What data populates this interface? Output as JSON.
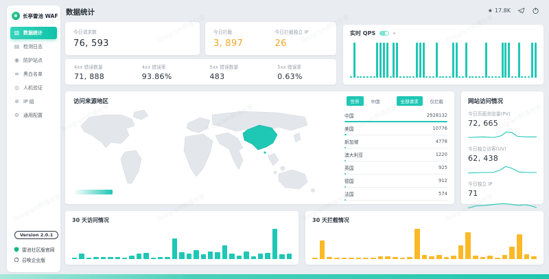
{
  "app": {
    "name": "长亭雷池 WAF",
    "version": "Version 2.0.1"
  },
  "header": {
    "title": "数据统计",
    "stars": "17.8K"
  },
  "sidebar": {
    "items": [
      {
        "label": "数据统计"
      },
      {
        "label": "检测日志"
      },
      {
        "label": "防护站点"
      },
      {
        "label": "黑白名单"
      },
      {
        "label": "人机验证"
      },
      {
        "label": "IP 组"
      },
      {
        "label": "通用配置"
      }
    ],
    "footer_links": [
      {
        "label": "雷池社区版官网"
      },
      {
        "label": "召唤企业版"
      }
    ]
  },
  "stats": {
    "today_requests": {
      "label": "今日请求数",
      "value": "76, 593"
    },
    "today_blocked": {
      "label": "今日拦截",
      "value": "3, 897"
    },
    "today_blocked_ips": {
      "label": "今日拦截独立 IP",
      "value": "26"
    },
    "err4xx_count": {
      "label": "4xx 错误数量",
      "value": "71, 888"
    },
    "err4xx_rate": {
      "label": "4xx 错误率",
      "value": "93.86%"
    },
    "err5xx_count": {
      "label": "5xx 错误数量",
      "value": "483"
    },
    "err5xx_rate": {
      "label": "5xx 错误率",
      "value": "0.63%"
    }
  },
  "qps": {
    "title": "实时 QPS"
  },
  "map": {
    "title": "访问来源地区",
    "toggles": {
      "scope": [
        "世界",
        "中国"
      ],
      "scope_active": "世界",
      "mode": [
        "全部请求",
        "仅拦截"
      ],
      "mode_active": "全部请求"
    }
  },
  "site": {
    "title": "网站访问情况",
    "metrics": [
      {
        "label": "今日页面浏览量(PV)",
        "value": "72, 665"
      },
      {
        "label": "今日独立访客(UV)",
        "value": "62, 438"
      },
      {
        "label": "今日独立 IP",
        "value": "71"
      }
    ]
  },
  "charts30": {
    "visits_title": "30 天访问情况",
    "blocks_title": "30 天拦截情况"
  },
  "watermark": "Telegram频道分享",
  "colors": {
    "accent": "#1fc7b5",
    "accent_dark": "#0fc3a7",
    "orange": "#f5a623",
    "yellow": "#fbb827",
    "logo_green": "#10b981"
  },
  "chart_data": [
    {
      "id": "qps",
      "type": "bar",
      "title": "实时 QPS",
      "color": "#1fc7b5",
      "note": "tall bars = QPS spikes, stubs = near-zero baseline; y-axis unlabeled",
      "values": [
        0,
        1,
        0,
        0,
        0,
        0,
        0,
        0,
        1,
        1,
        1,
        1,
        0,
        1,
        1,
        0,
        0,
        0,
        0,
        0,
        1,
        1,
        1,
        0,
        0,
        0,
        1,
        0,
        0,
        0,
        0,
        1,
        1,
        0,
        0,
        1,
        0,
        0,
        0,
        0,
        0,
        1,
        0,
        0,
        0,
        0,
        1,
        1,
        1,
        0,
        0,
        1,
        0,
        0,
        0,
        1,
        1
      ]
    },
    {
      "id": "visits30",
      "type": "bar",
      "title": "30 天访问情况",
      "color": "#1fc7b5",
      "note": "relative heights, axis unlabeled",
      "values": [
        4,
        16,
        4,
        7,
        7,
        7,
        7,
        4,
        11,
        16,
        18,
        5,
        7,
        7,
        62,
        20,
        16,
        27,
        14,
        24,
        21,
        42,
        17,
        11,
        24,
        8,
        17,
        19,
        92,
        14,
        17
      ]
    },
    {
      "id": "blocks30",
      "type": "bar",
      "title": "30 天拦截情况",
      "color": "#fbb827",
      "note": "relative heights, axis unlabeled",
      "values": [
        4,
        62,
        7,
        4,
        4,
        4,
        4,
        4,
        4,
        10,
        10,
        7,
        4,
        7,
        100,
        14,
        8,
        14,
        7,
        11,
        45,
        88,
        11,
        7,
        11,
        4,
        14,
        42,
        82,
        17,
        8
      ]
    },
    {
      "id": "regions",
      "type": "table",
      "title": "访问来源地区",
      "rows": [
        {
          "name": "中国",
          "value": "2928132",
          "pct": 100
        },
        {
          "name": "美国",
          "value": "10776",
          "pct": 2
        },
        {
          "name": "新加坡",
          "value": "4778",
          "pct": 1
        },
        {
          "name": "澳大利亚",
          "value": "1220",
          "pct": 1
        },
        {
          "name": "英国",
          "value": "925",
          "pct": 1
        },
        {
          "name": "德国",
          "value": "912",
          "pct": 1
        },
        {
          "name": "法国",
          "value": "574",
          "pct": 1
        }
      ]
    },
    {
      "id": "pv_spark",
      "type": "line",
      "title": "今日页面浏览量(PV)",
      "points": [
        [
          0,
          15
        ],
        [
          22,
          14
        ],
        [
          38,
          15
        ],
        [
          48,
          12
        ],
        [
          56,
          5
        ],
        [
          64,
          6
        ],
        [
          72,
          13
        ],
        [
          84,
          14
        ],
        [
          100,
          14
        ]
      ]
    },
    {
      "id": "uv_spark",
      "type": "line",
      "title": "今日独立访客(UV)",
      "points": [
        [
          0,
          16
        ],
        [
          20,
          15
        ],
        [
          36,
          15
        ],
        [
          46,
          11
        ],
        [
          55,
          4
        ],
        [
          63,
          7
        ],
        [
          74,
          14
        ],
        [
          86,
          15
        ],
        [
          100,
          15
        ]
      ]
    },
    {
      "id": "ip_spark",
      "type": "line",
      "title": "今日独立 IP",
      "points": [
        [
          0,
          16
        ],
        [
          12,
          12
        ],
        [
          26,
          11
        ],
        [
          40,
          9
        ],
        [
          52,
          8
        ],
        [
          62,
          9
        ],
        [
          74,
          11
        ],
        [
          84,
          10
        ],
        [
          92,
          12
        ],
        [
          100,
          15
        ]
      ]
    }
  ]
}
